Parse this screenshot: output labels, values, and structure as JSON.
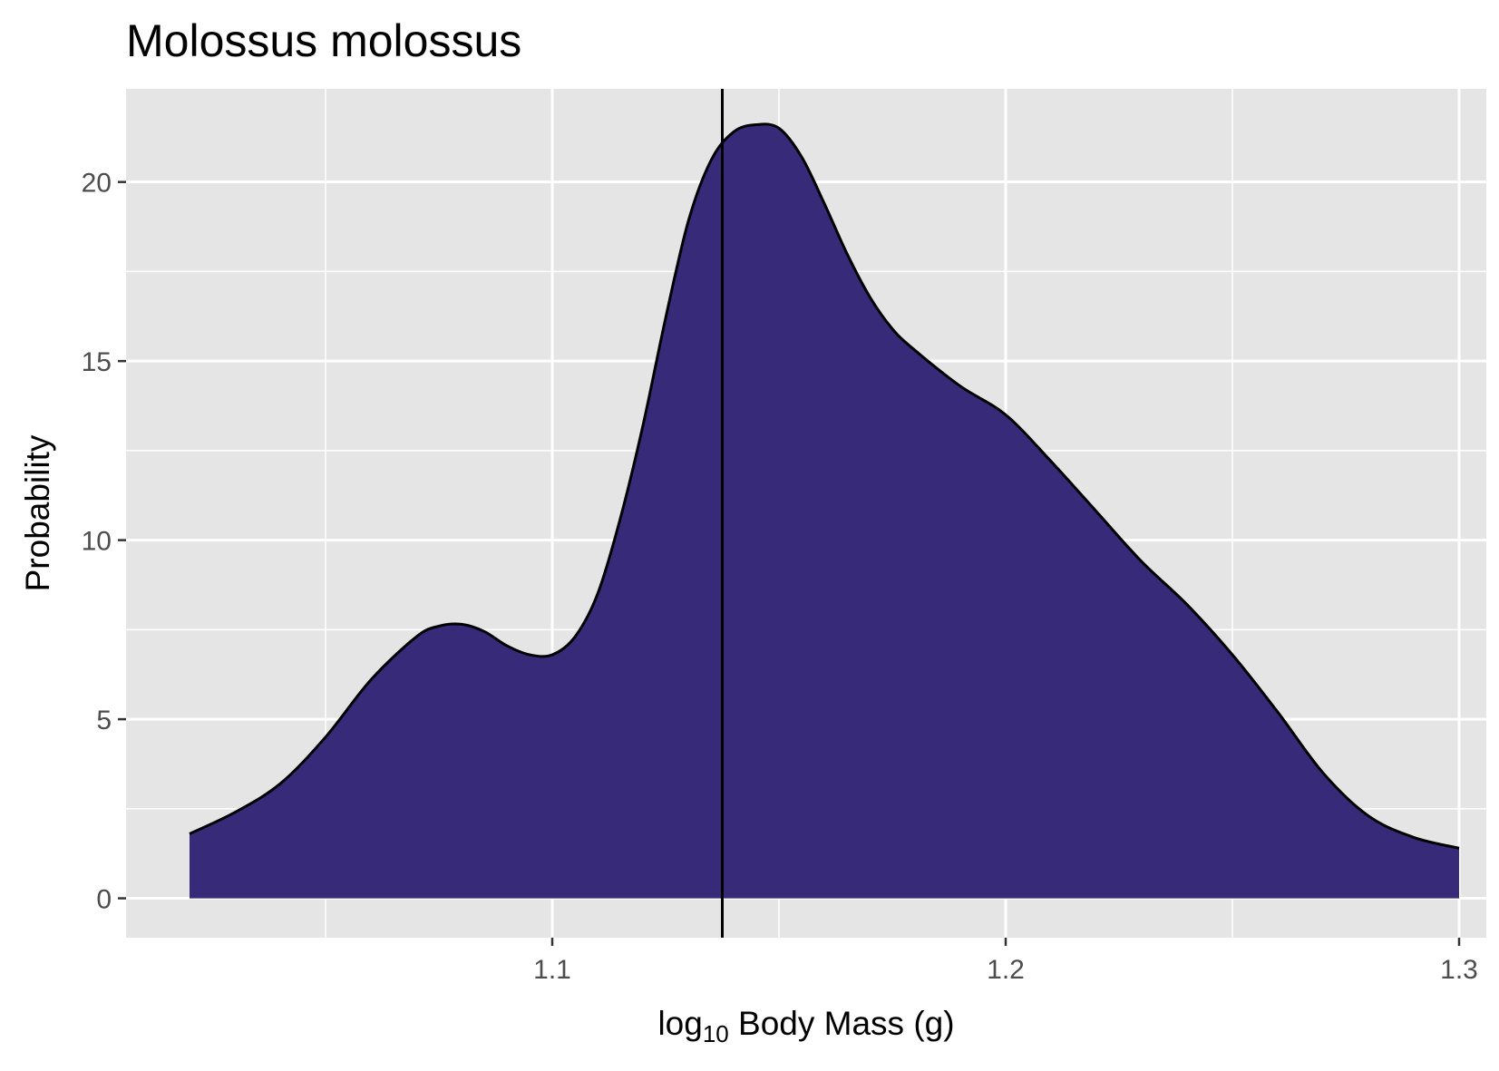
{
  "chart_data": {
    "type": "area",
    "title": "Molossus molossus",
    "xlabel_prefix": "log",
    "xlabel_sub": "10",
    "xlabel_suffix": " Body Mass (g)",
    "ylabel": "Probability",
    "xlim": [
      1.006,
      1.306
    ],
    "ylim": [
      -1.1,
      22.6
    ],
    "x_major_ticks": [
      1.1,
      1.2,
      1.3
    ],
    "x_minor_ticks": [
      1.05,
      1.15,
      1.25
    ],
    "y_major_ticks": [
      0,
      5,
      10,
      15,
      20
    ],
    "y_minor_ticks": [
      2.5,
      7.5,
      12.5,
      17.5
    ],
    "x_tick_labels": [
      "1.1",
      "1.2",
      "1.3"
    ],
    "y_tick_labels": [
      "0",
      "5",
      "10",
      "15",
      "20"
    ],
    "vline_x": 1.1375,
    "fill_color": "#372a79",
    "line_color": "#000000",
    "panel_color": "#e5e5e5",
    "grid": true,
    "series": [
      {
        "x": [
          1.02,
          1.03,
          1.04,
          1.05,
          1.06,
          1.07,
          1.075,
          1.08,
          1.085,
          1.09,
          1.095,
          1.1,
          1.105,
          1.11,
          1.115,
          1.12,
          1.125,
          1.13,
          1.135,
          1.14,
          1.145,
          1.15,
          1.155,
          1.16,
          1.165,
          1.17,
          1.175,
          1.18,
          1.19,
          1.2,
          1.21,
          1.22,
          1.23,
          1.24,
          1.25,
          1.26,
          1.27,
          1.28,
          1.29,
          1.3
        ],
        "y": [
          1.8,
          2.4,
          3.2,
          4.5,
          6.1,
          7.3,
          7.6,
          7.65,
          7.45,
          7.05,
          6.8,
          6.8,
          7.3,
          8.5,
          10.6,
          13.2,
          16.2,
          18.9,
          20.6,
          21.4,
          21.6,
          21.5,
          20.7,
          19.4,
          18.0,
          16.8,
          15.9,
          15.3,
          14.3,
          13.5,
          12.2,
          10.8,
          9.4,
          8.2,
          6.8,
          5.2,
          3.5,
          2.3,
          1.7,
          1.4
        ]
      }
    ]
  }
}
